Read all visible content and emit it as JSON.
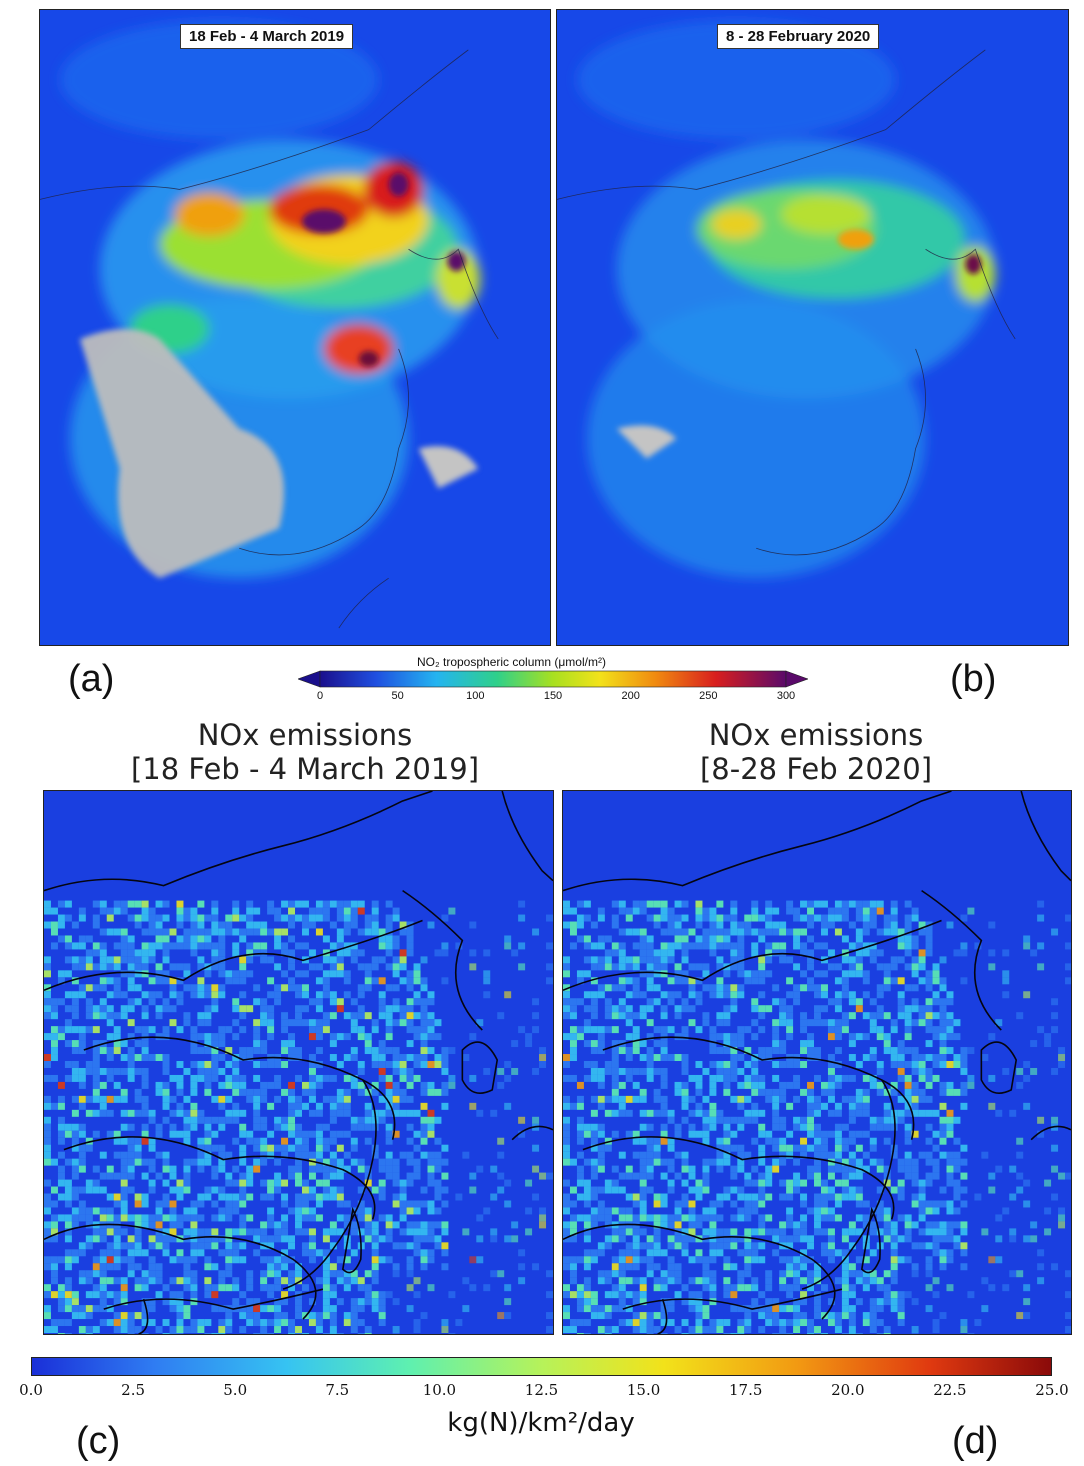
{
  "panels": {
    "a": {
      "label": "(a)",
      "date": "18 Feb - 4 March 2019"
    },
    "b": {
      "label": "(b)",
      "date": "8 - 28 February 2020"
    },
    "c": {
      "label": "(c)",
      "title_line1": "NOx emissions",
      "title_line2": "[18 Feb - 4 March 2019]"
    },
    "d": {
      "label": "(d)",
      "title_line1": "NOx emissions",
      "title_line2": "[8-28 Feb 2020]"
    }
  },
  "colorbar_top": {
    "title": "NO₂ tropospheric column (μmol/m²)",
    "ticks": [
      "0",
      "50",
      "100",
      "150",
      "200",
      "250",
      "300"
    ],
    "colors": [
      "#1a0f8c",
      "#1f4fe0",
      "#24b4f0",
      "#2fd08a",
      "#a8e020",
      "#f2e21a",
      "#f08a10",
      "#d81e1e",
      "#5a0a6a"
    ]
  },
  "colorbar_bottom": {
    "ticks": [
      "0.0",
      "2.5",
      "5.0",
      "7.5",
      "10.0",
      "12.5",
      "15.0",
      "17.5",
      "20.0",
      "22.5",
      "25.0"
    ],
    "unit": "kg(N)/km²/day",
    "colors": [
      "#1a2fd8",
      "#2f7cf2",
      "#36c3f2",
      "#5ef0b0",
      "#b6f25a",
      "#f2e21a",
      "#f29a12",
      "#e03a10",
      "#8a0a0a"
    ]
  }
}
